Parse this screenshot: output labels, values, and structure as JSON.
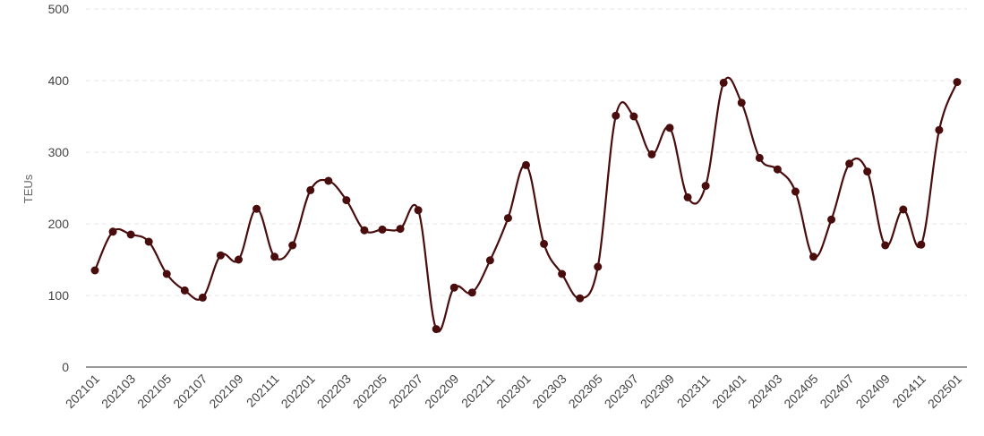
{
  "chart_data": {
    "type": "line",
    "title": "",
    "xlabel": "",
    "ylabel": "TEUs",
    "ylim": [
      0,
      500
    ],
    "yticks": [
      0,
      100,
      200,
      300,
      400,
      500
    ],
    "grid": true,
    "legend": "none",
    "line_color": "#4a0d0d",
    "x": [
      "202101",
      "202102",
      "202103",
      "202104",
      "202105",
      "202106",
      "202107",
      "202108",
      "202109",
      "202110",
      "202111",
      "202112",
      "202201",
      "202202",
      "202203",
      "202204",
      "202205",
      "202206",
      "202207",
      "202208",
      "202209",
      "202210",
      "202211",
      "202212",
      "202301",
      "202302",
      "202303",
      "202304",
      "202305",
      "202306",
      "202307",
      "202308",
      "202309",
      "202310",
      "202311",
      "202312",
      "202401",
      "202402",
      "202403",
      "202404",
      "202405",
      "202406",
      "202407",
      "202408",
      "202409",
      "202410",
      "202411",
      "202412",
      "202501"
    ],
    "x_tick_labels": [
      "202101",
      "202103",
      "202105",
      "202107",
      "202109",
      "202111",
      "202201",
      "202203",
      "202205",
      "202207",
      "202209",
      "202211",
      "202301",
      "202303",
      "202305",
      "202307",
      "202309",
      "202311",
      "202401",
      "202403",
      "202405",
      "202407",
      "202409",
      "202411",
      "202501"
    ],
    "series": [
      {
        "values": [
          135,
          189,
          185,
          175,
          130,
          107,
          97,
          156,
          150,
          221,
          154,
          170,
          247,
          260,
          233,
          191,
          192,
          193,
          219,
          53,
          111,
          104,
          149,
          208,
          282,
          172,
          130,
          96,
          140,
          351,
          350,
          297,
          334,
          237,
          253,
          397,
          369,
          292,
          276,
          245,
          154,
          206,
          284,
          273,
          170,
          220,
          171,
          331,
          398
        ]
      }
    ]
  }
}
